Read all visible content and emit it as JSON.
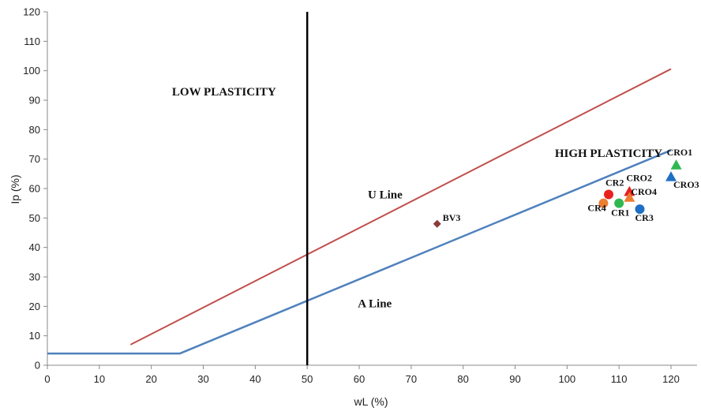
{
  "chart_data": {
    "type": "scatter",
    "xlabel": "wL (%)",
    "ylabel": "Ip (%)",
    "xlim": [
      0,
      125
    ],
    "ylim": [
      0,
      120
    ],
    "xticks": [
      "0",
      "10",
      "20",
      "30",
      "40",
      "50",
      "60",
      "70",
      "80",
      "90",
      "100",
      "110",
      "120"
    ],
    "yticks": [
      "0",
      "10",
      "20",
      "30",
      "40",
      "50",
      "60",
      "70",
      "80",
      "90",
      "100",
      "110",
      "120"
    ],
    "grid": false,
    "lines": [
      {
        "name": "U Line",
        "color": "#c0504d",
        "points": [
          [
            16,
            7
          ],
          [
            120,
            100.6
          ]
        ]
      },
      {
        "name": "A Line",
        "color": "#4f81bd",
        "points": [
          [
            0,
            4
          ],
          [
            25.5,
            4
          ],
          [
            120,
            73
          ]
        ]
      },
      {
        "name": "",
        "color": "#000000",
        "points": [
          [
            50,
            0
          ],
          [
            50,
            120
          ]
        ]
      }
    ],
    "annotations": [
      {
        "text": "LOW PLASTICITY",
        "x": 34,
        "y": 93
      },
      {
        "text": "HIGH  PLASTICITY",
        "x": 108,
        "y": 72
      },
      {
        "text": "U Line",
        "x": 65,
        "y": 58
      },
      {
        "text": "A Line",
        "x": 63,
        "y": 21
      }
    ],
    "points": [
      {
        "name": "CR2",
        "x": 108,
        "y": 58,
        "color": "#e8201e",
        "marker": "circle"
      },
      {
        "name": "CR4",
        "x": 107,
        "y": 55,
        "color": "#ed7d31",
        "marker": "circle"
      },
      {
        "name": "CR1",
        "x": 110,
        "y": 55,
        "color": "#2fb84f",
        "marker": "circle"
      },
      {
        "name": "CR3",
        "x": 114,
        "y": 53,
        "color": "#1f6fc5",
        "marker": "circle"
      },
      {
        "name": "CRO2",
        "x": 112,
        "y": 59,
        "color": "#e8201e",
        "marker": "triangle"
      },
      {
        "name": "CRO4",
        "x": 112,
        "y": 57,
        "color": "#ed7d31",
        "marker": "triangle"
      },
      {
        "name": "CRO1",
        "x": 121,
        "y": 68,
        "color": "#2fb84f",
        "marker": "triangle"
      },
      {
        "name": "CRO3",
        "x": 120,
        "y": 64,
        "color": "#1f6fc5",
        "marker": "triangle"
      },
      {
        "name": "BV3",
        "x": 75,
        "y": 48,
        "color": "#8b3a3a",
        "marker": "diamond"
      }
    ]
  }
}
